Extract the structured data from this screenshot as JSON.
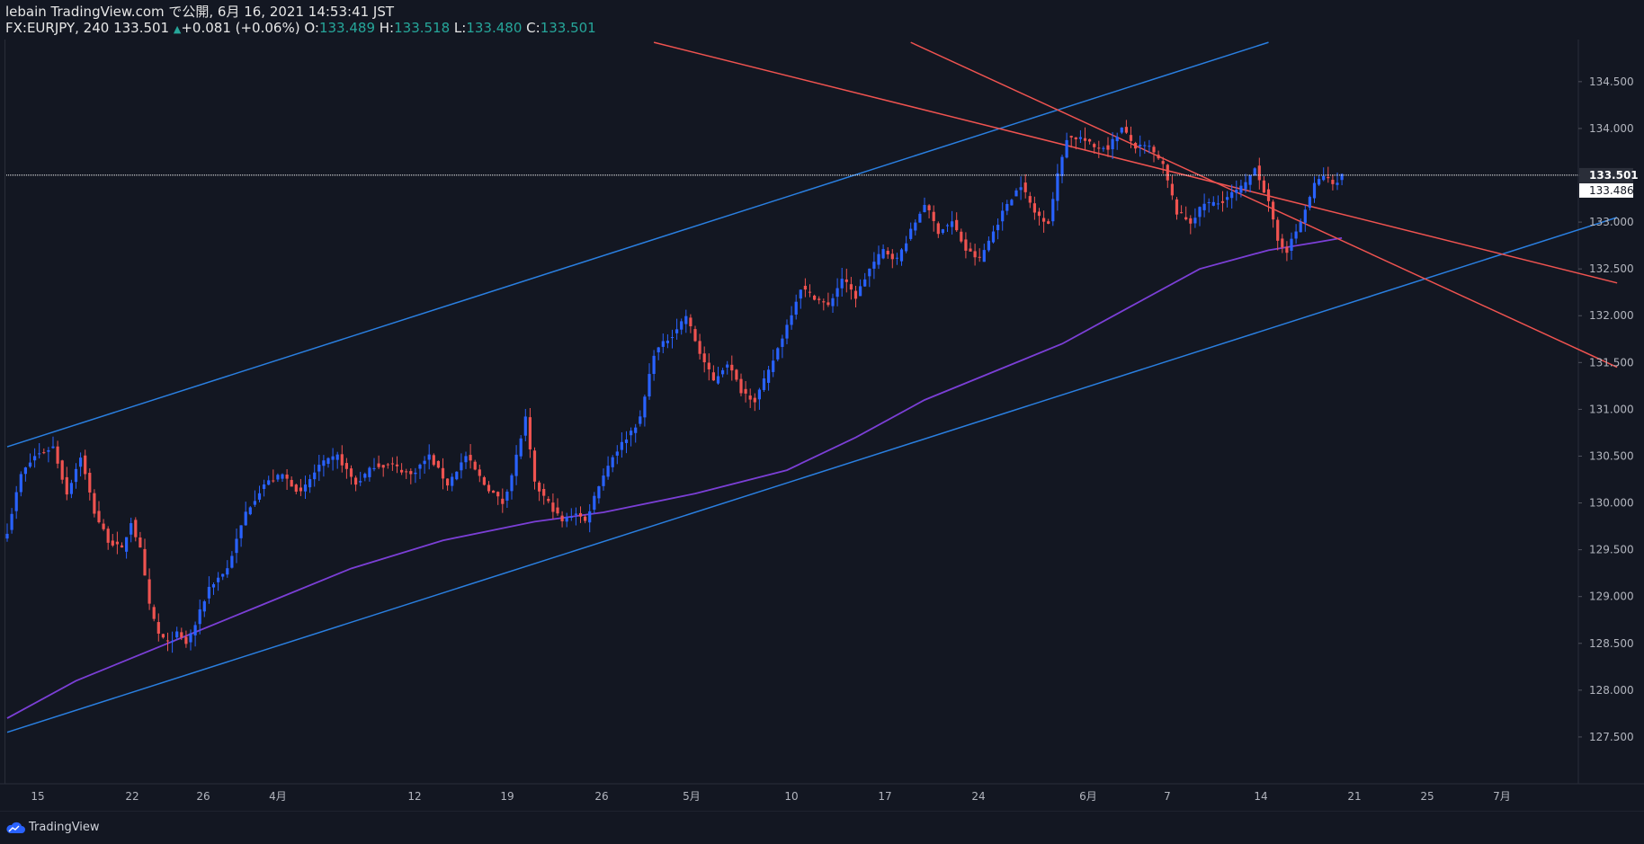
{
  "header": {
    "published_line": "lebain TradingView.com で公開, 6月 16, 2021 14:53:41 JST",
    "symbol_line": "FX:EURJPY, 240 133.501",
    "change": "+0.081 (+0.06%)",
    "open_label": "O:",
    "open": "133.489",
    "high_label": "H:",
    "high": "133.518",
    "low_label": "L:",
    "low": "133.480",
    "close_label": "C:",
    "close": "133.501"
  },
  "footer": {
    "brand": "TradingView"
  },
  "colors": {
    "background": "#131722",
    "up_candle": "#2962ff",
    "down_candle": "#ef5350",
    "trend_blue": "#2a7fe0",
    "trend_red": "#ef5350",
    "ma": "#7b3fd6",
    "axis_line": "#2a2e39",
    "price_line": "#ffffff"
  },
  "chart_data": {
    "type": "candlestick",
    "symbol": "FX:EURJPY",
    "timeframe": "240",
    "y_axis": {
      "ticks": [
        "127.500",
        "128.000",
        "128.500",
        "129.000",
        "129.500",
        "130.000",
        "130.500",
        "131.000",
        "131.500",
        "132.000",
        "132.500",
        "133.000",
        "133.500",
        "134.000",
        "134.500"
      ],
      "range": [
        127.0,
        134.95
      ]
    },
    "x_axis": {
      "ticks": [
        "15",
        "22",
        "26",
        "4月",
        "12",
        "19",
        "26",
        "5月",
        "10",
        "17",
        "24",
        "6月",
        "7",
        "14",
        "21",
        "25",
        "7月"
      ]
    },
    "current_price_label": "133.501",
    "secondary_price_label": "133.486",
    "anchors": [
      {
        "i": 0,
        "p": 129.7
      },
      {
        "i": 3,
        "p": 130.3
      },
      {
        "i": 6,
        "p": 130.5
      },
      {
        "i": 10,
        "p": 130.6
      },
      {
        "i": 13,
        "p": 130.1
      },
      {
        "i": 16,
        "p": 130.5
      },
      {
        "i": 19,
        "p": 129.9
      },
      {
        "i": 22,
        "p": 129.6
      },
      {
        "i": 25,
        "p": 129.5
      },
      {
        "i": 27,
        "p": 129.8
      },
      {
        "i": 29,
        "p": 129.5
      },
      {
        "i": 31,
        "p": 128.9
      },
      {
        "i": 33,
        "p": 128.6
      },
      {
        "i": 35,
        "p": 128.5
      },
      {
        "i": 37,
        "p": 128.6
      },
      {
        "i": 39,
        "p": 128.5
      },
      {
        "i": 41,
        "p": 128.7
      },
      {
        "i": 44,
        "p": 129.1
      },
      {
        "i": 48,
        "p": 129.3
      },
      {
        "i": 52,
        "p": 129.9
      },
      {
        "i": 56,
        "p": 130.2
      },
      {
        "i": 60,
        "p": 130.3
      },
      {
        "i": 64,
        "p": 130.1
      },
      {
        "i": 68,
        "p": 130.4
      },
      {
        "i": 72,
        "p": 130.5
      },
      {
        "i": 76,
        "p": 130.2
      },
      {
        "i": 80,
        "p": 130.4
      },
      {
        "i": 84,
        "p": 130.4
      },
      {
        "i": 88,
        "p": 130.3
      },
      {
        "i": 92,
        "p": 130.5
      },
      {
        "i": 96,
        "p": 130.2
      },
      {
        "i": 100,
        "p": 130.5
      },
      {
        "i": 104,
        "p": 130.2
      },
      {
        "i": 108,
        "p": 130.0
      },
      {
        "i": 110,
        "p": 130.3
      },
      {
        "i": 113,
        "p": 130.9
      },
      {
        "i": 115,
        "p": 130.2
      },
      {
        "i": 118,
        "p": 130.0
      },
      {
        "i": 121,
        "p": 129.8
      },
      {
        "i": 124,
        "p": 129.9
      },
      {
        "i": 126,
        "p": 129.8
      },
      {
        "i": 129,
        "p": 130.2
      },
      {
        "i": 132,
        "p": 130.5
      },
      {
        "i": 135,
        "p": 130.7
      },
      {
        "i": 138,
        "p": 130.9
      },
      {
        "i": 141,
        "p": 131.6
      },
      {
        "i": 145,
        "p": 131.8
      },
      {
        "i": 148,
        "p": 132.0
      },
      {
        "i": 151,
        "p": 131.6
      },
      {
        "i": 154,
        "p": 131.3
      },
      {
        "i": 157,
        "p": 131.5
      },
      {
        "i": 160,
        "p": 131.2
      },
      {
        "i": 163,
        "p": 131.1
      },
      {
        "i": 166,
        "p": 131.4
      },
      {
        "i": 170,
        "p": 131.9
      },
      {
        "i": 173,
        "p": 132.3
      },
      {
        "i": 176,
        "p": 132.2
      },
      {
        "i": 179,
        "p": 132.1
      },
      {
        "i": 182,
        "p": 132.4
      },
      {
        "i": 185,
        "p": 132.2
      },
      {
        "i": 188,
        "p": 132.5
      },
      {
        "i": 191,
        "p": 132.7
      },
      {
        "i": 194,
        "p": 132.6
      },
      {
        "i": 197,
        "p": 132.9
      },
      {
        "i": 200,
        "p": 133.2
      },
      {
        "i": 203,
        "p": 132.9
      },
      {
        "i": 206,
        "p": 133.0
      },
      {
        "i": 209,
        "p": 132.7
      },
      {
        "i": 212,
        "p": 132.6
      },
      {
        "i": 215,
        "p": 132.9
      },
      {
        "i": 218,
        "p": 133.2
      },
      {
        "i": 221,
        "p": 133.4
      },
      {
        "i": 224,
        "p": 133.1
      },
      {
        "i": 227,
        "p": 133.0
      },
      {
        "i": 229,
        "p": 133.5
      },
      {
        "i": 231,
        "p": 133.9
      },
      {
        "i": 234,
        "p": 133.9
      },
      {
        "i": 237,
        "p": 133.8
      },
      {
        "i": 240,
        "p": 133.8
      },
      {
        "i": 243,
        "p": 134.0
      },
      {
        "i": 246,
        "p": 133.8
      },
      {
        "i": 249,
        "p": 133.8
      },
      {
        "i": 252,
        "p": 133.6
      },
      {
        "i": 255,
        "p": 133.1
      },
      {
        "i": 258,
        "p": 133.0
      },
      {
        "i": 261,
        "p": 133.2
      },
      {
        "i": 264,
        "p": 133.2
      },
      {
        "i": 267,
        "p": 133.3
      },
      {
        "i": 270,
        "p": 133.4
      },
      {
        "i": 272,
        "p": 133.6
      },
      {
        "i": 275,
        "p": 133.2
      },
      {
        "i": 277,
        "p": 132.8
      },
      {
        "i": 279,
        "p": 132.7
      },
      {
        "i": 282,
        "p": 133.0
      },
      {
        "i": 285,
        "p": 133.4
      },
      {
        "i": 287,
        "p": 133.5
      },
      {
        "i": 289,
        "p": 133.4
      },
      {
        "i": 291,
        "p": 133.5
      }
    ],
    "bar_count": 292,
    "moving_average": [
      {
        "i": 0,
        "p": 127.7
      },
      {
        "i": 15,
        "p": 128.1
      },
      {
        "i": 30,
        "p": 128.4
      },
      {
        "i": 40,
        "p": 128.6
      },
      {
        "i": 55,
        "p": 128.9
      },
      {
        "i": 75,
        "p": 129.3
      },
      {
        "i": 95,
        "p": 129.6
      },
      {
        "i": 115,
        "p": 129.8
      },
      {
        "i": 130,
        "p": 129.9
      },
      {
        "i": 150,
        "p": 130.1
      },
      {
        "i": 170,
        "p": 130.35
      },
      {
        "i": 185,
        "p": 130.7
      },
      {
        "i": 200,
        "p": 131.1
      },
      {
        "i": 215,
        "p": 131.4
      },
      {
        "i": 230,
        "p": 131.7
      },
      {
        "i": 245,
        "p": 132.1
      },
      {
        "i": 260,
        "p": 132.5
      },
      {
        "i": 275,
        "p": 132.7
      },
      {
        "i": 285,
        "p": 132.78
      },
      {
        "i": 291,
        "p": 132.83
      }
    ],
    "trendlines": [
      {
        "color": "blue",
        "from": {
          "i": 0,
          "p": 130.6
        },
        "to": {
          "i": 275,
          "p": 134.92
        }
      },
      {
        "color": "blue",
        "from": {
          "i": 0,
          "p": 127.55
        },
        "to": {
          "i": 351,
          "p": 133.05
        }
      },
      {
        "color": "red",
        "from": {
          "i": 141,
          "p": 134.92
        },
        "to": {
          "i": 351,
          "p": 132.35
        }
      },
      {
        "color": "red",
        "from": {
          "i": 197,
          "p": 134.92
        },
        "to": {
          "i": 351,
          "p": 131.45
        }
      }
    ],
    "price_line": 133.501
  }
}
